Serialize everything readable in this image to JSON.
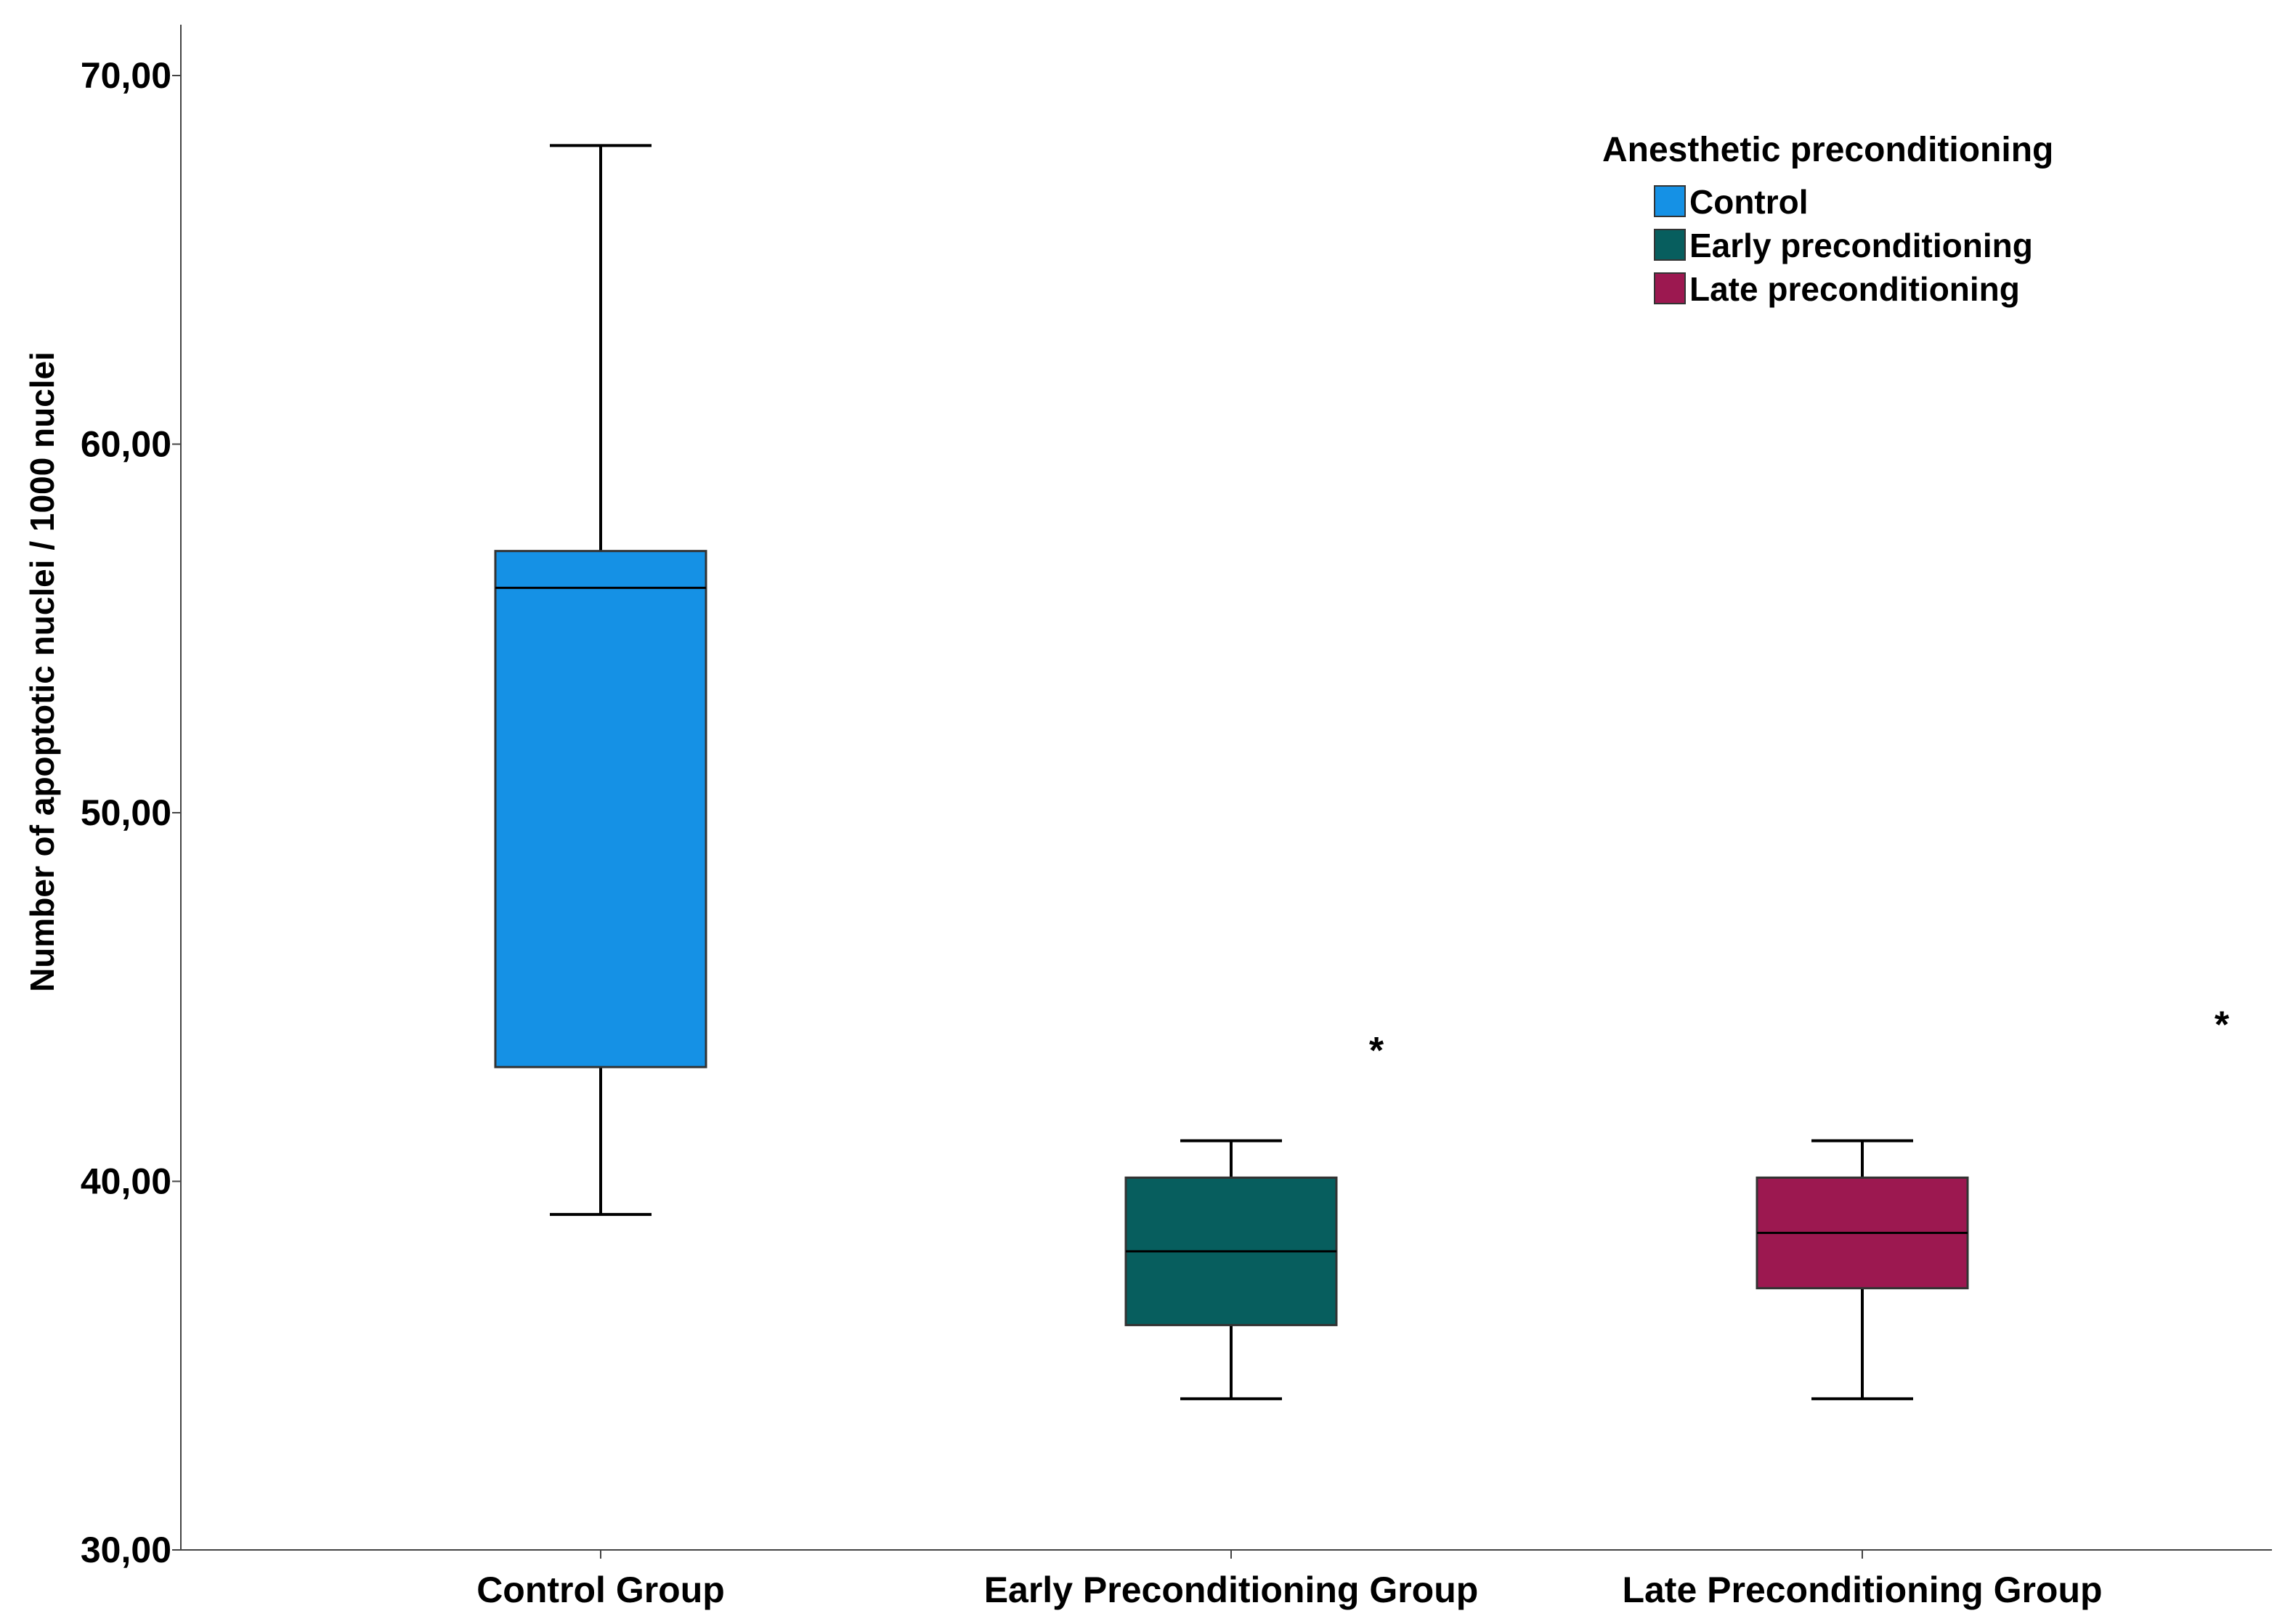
{
  "chart_data": {
    "type": "boxplot",
    "ylabel": "Number of apoptotic nuclei / 1000 nuclei",
    "xlabel": "",
    "ylim": [
      30,
      70
    ],
    "yticks": [
      "30,00",
      "40,00",
      "50,00",
      "60,00",
      "70,00"
    ],
    "ytick_values": [
      30,
      40,
      50,
      60,
      70
    ],
    "categories": [
      "Control Group",
      "Early Preconditioning Group",
      "Late Preconditioning Group"
    ],
    "legend": {
      "title": "Anesthetic preconditioning",
      "placement": "top-right",
      "items": [
        {
          "label": "Control",
          "color": "#1591E5"
        },
        {
          "label": "Early preconditioning",
          "color": "#075E5E"
        },
        {
          "label": "Late preconditioning",
          "color": "#9C1850"
        }
      ]
    },
    "boxes": [
      {
        "category": "Control Group",
        "series": "Control",
        "color": "#1591E5",
        "whisker_low": 39.1,
        "q1": 43.1,
        "median": 56.1,
        "q3": 57.1,
        "whisker_high": 68.1
      },
      {
        "category": "Early Preconditioning Group",
        "series": "Early preconditioning",
        "color": "#075E5E",
        "whisker_low": 34.1,
        "q1": 36.1,
        "median": 38.1,
        "q3": 40.1,
        "whisker_high": 41.1
      },
      {
        "category": "Late Preconditioning Group",
        "series": "Late preconditioning",
        "color": "#9C1850",
        "whisker_low": 34.1,
        "q1": 37.1,
        "median": 38.6,
        "q3": 40.1,
        "whisker_high": 41.1
      }
    ],
    "annotations": [
      {
        "text": "*",
        "category": "Early Preconditioning Group",
        "y": 43.6
      },
      {
        "text": "*",
        "category": "Late Preconditioning Group",
        "y": 44.3
      }
    ],
    "grid": false
  }
}
